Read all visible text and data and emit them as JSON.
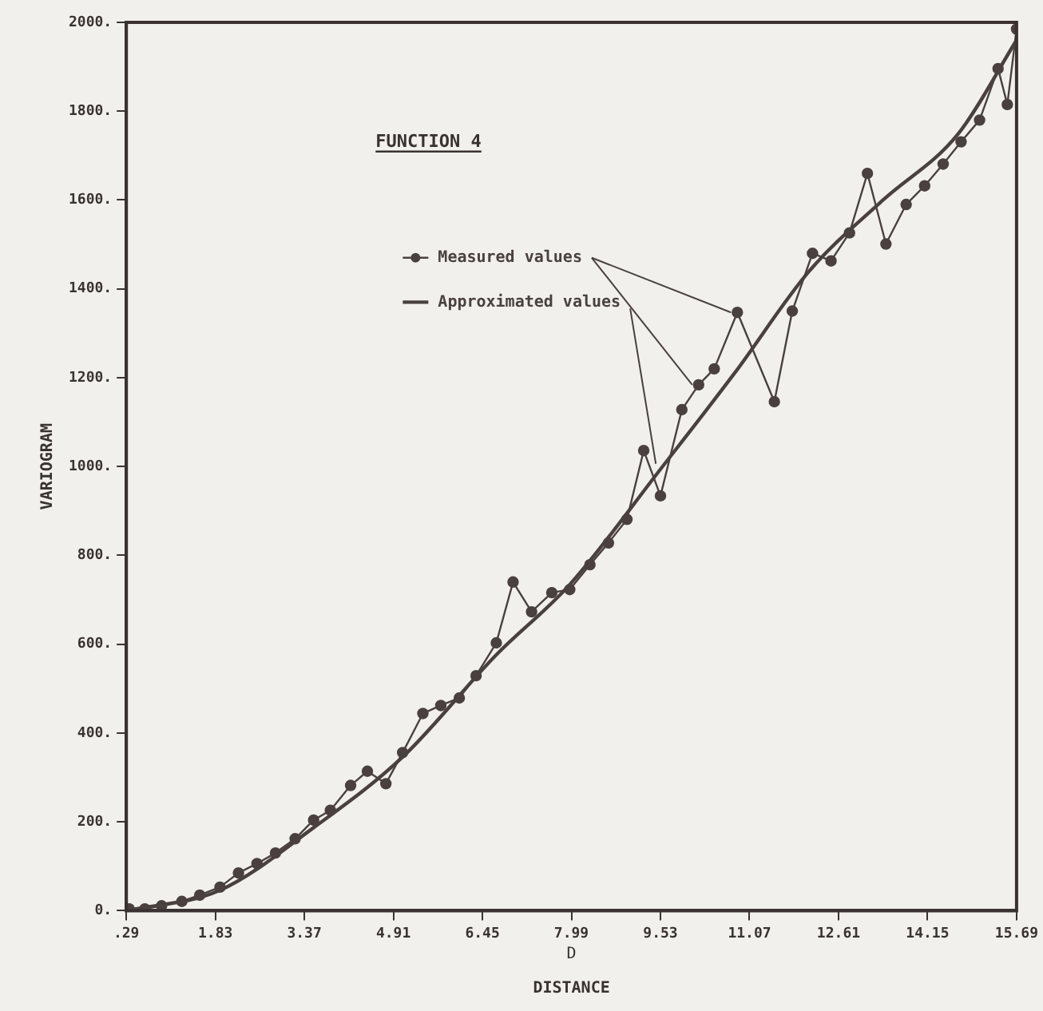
{
  "chart_data": {
    "type": "line",
    "title": "FUNCTION 4",
    "xlabel": "DISTANCE",
    "ylabel": "VARIOGRAM",
    "annotations": [
      "D"
    ],
    "xlim": [
      0.29,
      15.69
    ],
    "xticks": [
      {
        "value": 0.29,
        "label": ".29"
      },
      {
        "value": 1.83,
        "label": "1.83"
      },
      {
        "value": 3.37,
        "label": "3.37"
      },
      {
        "value": 4.91,
        "label": "4.91"
      },
      {
        "value": 6.45,
        "label": "6.45"
      },
      {
        "value": 7.99,
        "label": "7.99"
      },
      {
        "value": 9.53,
        "label": "9.53"
      },
      {
        "value": 11.07,
        "label": "11.07"
      },
      {
        "value": 12.61,
        "label": "12.61"
      },
      {
        "value": 14.15,
        "label": "14.15"
      },
      {
        "value": 15.69,
        "label": "15.69"
      }
    ],
    "ylim": [
      0,
      2000
    ],
    "yticks": [
      {
        "value": 0,
        "label": "0."
      },
      {
        "value": 200,
        "label": "200."
      },
      {
        "value": 400,
        "label": "400."
      },
      {
        "value": 600,
        "label": "600."
      },
      {
        "value": 800,
        "label": "800."
      },
      {
        "value": 1000,
        "label": "1000."
      },
      {
        "value": 1200,
        "label": "1200."
      },
      {
        "value": 1400,
        "label": "1400."
      },
      {
        "value": 1600,
        "label": "1600."
      },
      {
        "value": 1800,
        "label": "1800."
      },
      {
        "value": 2000,
        "label": "2000."
      }
    ],
    "grid": false,
    "legend": "top left",
    "series": [
      {
        "name": "Measured values",
        "color": "#4a4040",
        "marker": "circle",
        "x": [
          0.34,
          0.61,
          0.9,
          1.25,
          1.56,
          1.91,
          2.23,
          2.55,
          2.87,
          3.21,
          3.53,
          3.82,
          4.17,
          4.46,
          4.78,
          5.07,
          5.42,
          5.73,
          6.05,
          6.34,
          6.69,
          6.98,
          7.3,
          7.65,
          7.96,
          8.31,
          8.63,
          8.95,
          9.24,
          9.53,
          9.9,
          10.19,
          10.46,
          10.86,
          11.5,
          11.81,
          12.16,
          12.48,
          12.8,
          13.11,
          13.43,
          13.78,
          14.1,
          14.42,
          14.73,
          15.05,
          15.37,
          15.53,
          15.69
        ],
        "values": [
          4,
          4,
          11,
          21,
          35,
          53,
          85,
          106,
          130,
          162,
          204,
          226,
          282,
          314,
          286,
          356,
          444,
          462,
          479,
          529,
          603,
          740,
          673,
          716,
          723,
          779,
          828,
          881,
          1036,
          934,
          1128,
          1184,
          1220,
          1347,
          1146,
          1350,
          1480,
          1463,
          1526,
          1660,
          1501,
          1590,
          1632,
          1681,
          1731,
          1780,
          1896,
          1815,
          1985
        ]
      },
      {
        "name": "Approximated values",
        "color": "#4a4040",
        "marker": "none",
        "x": [
          0.29,
          1.91,
          3.53,
          5.07,
          6.69,
          7.96,
          9.56,
          10.81,
          12.11,
          13.38,
          14.68,
          15.69
        ],
        "values": [
          0,
          46,
          187,
          346,
          576,
          734,
          999,
          1210,
          1441,
          1600,
          1749,
          1960
        ]
      }
    ]
  }
}
